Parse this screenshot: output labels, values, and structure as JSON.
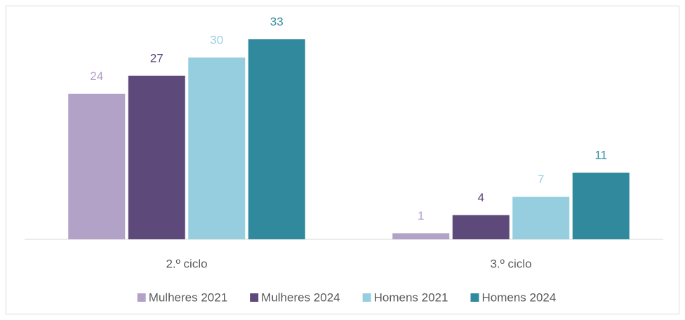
{
  "chart_data": {
    "type": "bar",
    "categories": [
      "2.º ciclo",
      "3.º ciclo"
    ],
    "series": [
      {
        "name": "Mulheres 2021",
        "color": "#b3a2c8",
        "values": [
          24,
          1
        ]
      },
      {
        "name": "Mulheres 2024",
        "color": "#5e4a7a",
        "values": [
          27,
          4
        ]
      },
      {
        "name": "Homens 2021",
        "color": "#96cedf",
        "values": [
          30,
          7
        ]
      },
      {
        "name": "Homens 2024",
        "color": "#31899e",
        "values": [
          33,
          11
        ]
      }
    ],
    "legend": "bottom"
  }
}
